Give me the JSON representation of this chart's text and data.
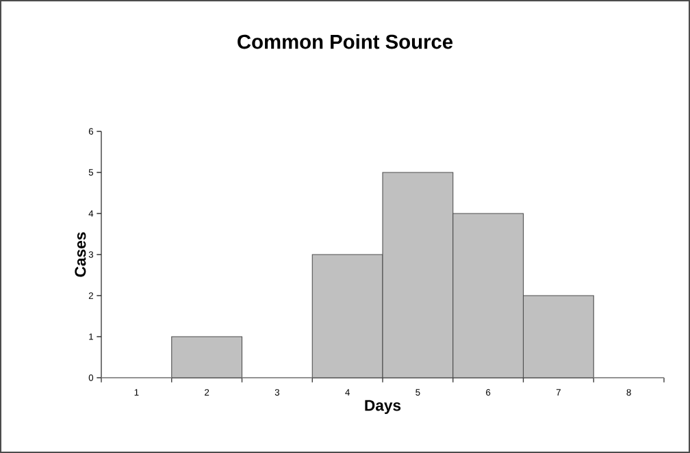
{
  "chart_data": {
    "type": "bar",
    "title": "Common Point Source",
    "xlabel": "Days",
    "ylabel": "Cases",
    "categories": [
      "1",
      "2",
      "3",
      "4",
      "5",
      "6",
      "7",
      "8"
    ],
    "values": [
      0,
      1,
      0,
      3,
      5,
      4,
      2,
      0
    ],
    "color": "#c0c0c0",
    "ylim": [
      0,
      6
    ],
    "yticks": [
      0,
      1,
      2,
      3,
      4,
      5,
      6
    ]
  }
}
